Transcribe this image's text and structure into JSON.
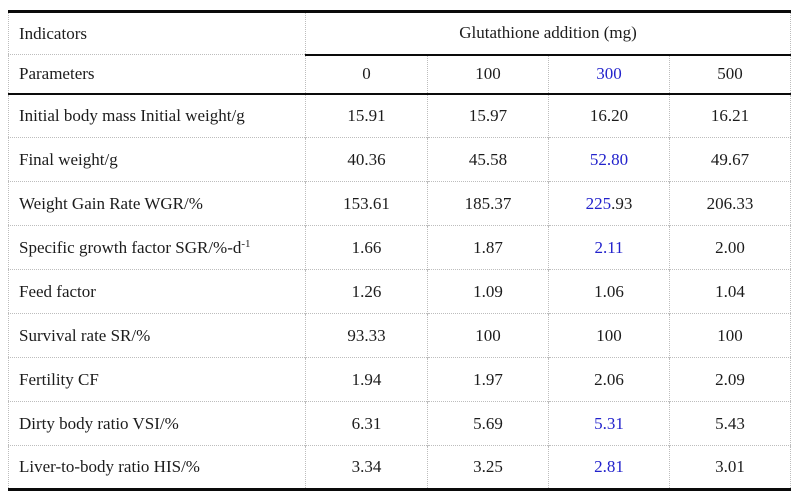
{
  "colors": {
    "accent_blue": "#2222cc",
    "text_black": "#1c1c1c",
    "rule_black": "#0a0a0a",
    "grid_dotted_gray": "#bdbdbd"
  },
  "table": {
    "header": {
      "col1_row1": "Indicators",
      "col1_row2": "Parameters",
      "group_label": "Glutathione addition (mg)",
      "columns": [
        {
          "text": "0"
        },
        {
          "text": "100"
        },
        {
          "text": "300",
          "blue": true
        },
        {
          "text": "500"
        }
      ]
    },
    "rows": [
      {
        "label": "Initial body mass Initial weight/g",
        "values": [
          {
            "text": "15.91"
          },
          {
            "text": "15.97"
          },
          {
            "text": "16.20"
          },
          {
            "text": "16.21"
          }
        ]
      },
      {
        "label": "Final weight/g",
        "values": [
          {
            "text": "40.36"
          },
          {
            "text": "45.58"
          },
          {
            "text": "52.80",
            "blue": true
          },
          {
            "text": "49.67"
          }
        ]
      },
      {
        "label": "Weight Gain Rate WGR/%",
        "values": [
          {
            "text": "153.61"
          },
          {
            "text": "185.37"
          },
          {
            "parts": [
              {
                "text": "225",
                "blue": true
              },
              {
                "text": ".93"
              }
            ]
          },
          {
            "text": "206.33"
          }
        ]
      },
      {
        "label": "Specific growth factor SGR/%-d",
        "label_sup": "-1",
        "values": [
          {
            "text": "1.66"
          },
          {
            "text": "1.87"
          },
          {
            "text": "2.11",
            "blue": true
          },
          {
            "text": "2.00"
          }
        ]
      },
      {
        "label": "Feed factor",
        "values": [
          {
            "text": "1.26"
          },
          {
            "text": "1.09"
          },
          {
            "text": "1.06"
          },
          {
            "text": "1.04"
          }
        ]
      },
      {
        "label": "Survival rate SR/%",
        "values": [
          {
            "text": "93.33"
          },
          {
            "text": "100"
          },
          {
            "text": "100"
          },
          {
            "text": "100"
          }
        ]
      },
      {
        "label": "Fertility CF",
        "values": [
          {
            "text": "1.94"
          },
          {
            "text": "1.97"
          },
          {
            "text": "2.06"
          },
          {
            "text": "2.09"
          }
        ]
      },
      {
        "label": "Dirty body ratio VSI/%",
        "values": [
          {
            "text": "6.31"
          },
          {
            "text": "5.69"
          },
          {
            "text": "5.31",
            "blue": true
          },
          {
            "text": "5.43"
          }
        ]
      },
      {
        "label": "Liver-to-body ratio HIS/%",
        "values": [
          {
            "text": "3.34"
          },
          {
            "text": "3.25"
          },
          {
            "text": "2.81",
            "blue": true
          },
          {
            "text": "3.01"
          }
        ]
      }
    ]
  }
}
